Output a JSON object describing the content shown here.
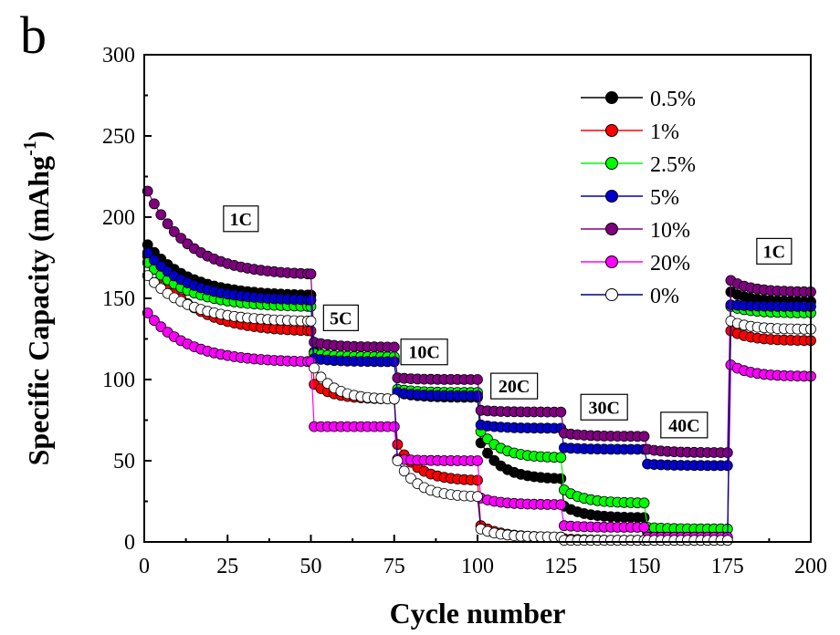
{
  "chart_data": {
    "type": "scatter",
    "panel_label": "b",
    "xlabel": "Cycle number",
    "ylabel": "Specific Capacity (mAhg",
    "ylabel_sup": "-1",
    "ylabel_close": ")",
    "xlim": [
      0,
      200
    ],
    "ylim": [
      0,
      300
    ],
    "xticks": [
      0,
      25,
      50,
      75,
      100,
      125,
      150,
      175,
      200
    ],
    "yticks": [
      0,
      50,
      100,
      150,
      200,
      250,
      300
    ],
    "grid": false,
    "legend_position": "top-right",
    "series": [
      {
        "name": "0.5%",
        "color": "#000000",
        "segments": [
          {
            "x": [
              1,
              50
            ],
            "y": [
              183,
              152
            ]
          },
          {
            "x": [
              51,
              75
            ],
            "y": [
              117,
              112
            ]
          },
          {
            "x": [
              76,
              100
            ],
            "y": [
              92,
              89
            ]
          },
          {
            "x": [
              101,
              125
            ],
            "y": [
              61,
              39
            ]
          },
          {
            "x": [
              126,
              150
            ],
            "y": [
              22,
              15
            ]
          },
          {
            "x": [
              151,
              175
            ],
            "y": [
              6,
              2
            ]
          },
          {
            "x": [
              176,
              200
            ],
            "y": [
              154,
              148
            ]
          }
        ]
      },
      {
        "name": "1%",
        "color": "#ff0000",
        "segments": [
          {
            "x": [
              1,
              50
            ],
            "y": [
              176,
              130
            ]
          },
          {
            "x": [
              51,
              75
            ],
            "y": [
              97,
              88
            ]
          },
          {
            "x": [
              76,
              100
            ],
            "y": [
              60,
              38
            ]
          },
          {
            "x": [
              101,
              125
            ],
            "y": [
              10,
              3
            ]
          },
          {
            "x": [
              126,
              150
            ],
            "y": [
              2,
              1
            ]
          },
          {
            "x": [
              151,
              175
            ],
            "y": [
              1,
              1
            ]
          },
          {
            "x": [
              176,
              200
            ],
            "y": [
              130,
              124
            ]
          }
        ]
      },
      {
        "name": "2.5%",
        "color": "#00ff00",
        "segments": [
          {
            "x": [
              1,
              50
            ],
            "y": [
              172,
              145
            ]
          },
          {
            "x": [
              51,
              75
            ],
            "y": [
              116,
              114
            ]
          },
          {
            "x": [
              76,
              100
            ],
            "y": [
              94,
              92
            ]
          },
          {
            "x": [
              101,
              125
            ],
            "y": [
              68,
              52
            ]
          },
          {
            "x": [
              126,
              150
            ],
            "y": [
              32,
              24
            ]
          },
          {
            "x": [
              151,
              175
            ],
            "y": [
              9,
              8
            ]
          },
          {
            "x": [
              176,
              200
            ],
            "y": [
              145,
              141
            ]
          }
        ]
      },
      {
        "name": "5%",
        "color": "#0000cc",
        "segments": [
          {
            "x": [
              1,
              50
            ],
            "y": [
              178,
              149
            ]
          },
          {
            "x": [
              51,
              75
            ],
            "y": [
              113,
              111
            ]
          },
          {
            "x": [
              76,
              100
            ],
            "y": [
              92,
              90
            ]
          },
          {
            "x": [
              101,
              125
            ],
            "y": [
              72,
              70
            ]
          },
          {
            "x": [
              126,
              150
            ],
            "y": [
              58,
              57
            ]
          },
          {
            "x": [
              151,
              175
            ],
            "y": [
              48,
              47
            ]
          },
          {
            "x": [
              176,
              200
            ],
            "y": [
              146,
              145
            ]
          }
        ]
      },
      {
        "name": "10%",
        "color": "#800080",
        "segments": [
          {
            "x": [
              1,
              50
            ],
            "y": [
              216,
              165
            ]
          },
          {
            "x": [
              51,
              75
            ],
            "y": [
              123,
              120
            ]
          },
          {
            "x": [
              76,
              100
            ],
            "y": [
              101,
              100
            ]
          },
          {
            "x": [
              101,
              125
            ],
            "y": [
              81,
              80
            ]
          },
          {
            "x": [
              126,
              150
            ],
            "y": [
              67,
              65
            ]
          },
          {
            "x": [
              151,
              175
            ],
            "y": [
              57,
              55
            ]
          },
          {
            "x": [
              176,
              200
            ],
            "y": [
              161,
              154
            ]
          }
        ]
      },
      {
        "name": "20%",
        "color": "#ff00ff",
        "segments": [
          {
            "x": [
              1,
              50
            ],
            "y": [
              141,
              111
            ]
          },
          {
            "x": [
              51,
              75
            ],
            "y": [
              71,
              71
            ]
          },
          {
            "x": [
              76,
              100
            ],
            "y": [
              51,
              50
            ]
          },
          {
            "x": [
              101,
              125
            ],
            "y": [
              27,
              23
            ]
          },
          {
            "x": [
              126,
              150
            ],
            "y": [
              10,
              9
            ]
          },
          {
            "x": [
              151,
              175
            ],
            "y": [
              3,
              3
            ]
          },
          {
            "x": [
              176,
              200
            ],
            "y": [
              109,
              102
            ]
          }
        ]
      },
      {
        "name": "0%",
        "color": "#ffffff",
        "stroke": "#000000",
        "segments": [
          {
            "x": [
              1,
              50
            ],
            "y": [
              164,
              136
            ]
          },
          {
            "x": [
              51,
              75
            ],
            "y": [
              107,
              88
            ]
          },
          {
            "x": [
              76,
              100
            ],
            "y": [
              50,
              28
            ]
          },
          {
            "x": [
              101,
              125
            ],
            "y": [
              8,
              3
            ]
          },
          {
            "x": [
              126,
              150
            ],
            "y": [
              1,
              1
            ]
          },
          {
            "x": [
              151,
              175
            ],
            "y": [
              1,
              1
            ]
          },
          {
            "x": [
              176,
              200
            ],
            "y": [
              136,
              131
            ]
          }
        ]
      }
    ],
    "annotations": [
      {
        "text": "1C",
        "x": 29,
        "y": 199
      },
      {
        "text": "5C",
        "x": 59,
        "y": 138
      },
      {
        "text": "10C",
        "x": 84,
        "y": 117
      },
      {
        "text": "20C",
        "x": 111,
        "y": 96
      },
      {
        "text": "30C",
        "x": 138,
        "y": 83
      },
      {
        "text": "40C",
        "x": 162,
        "y": 72
      },
      {
        "text": "1C",
        "x": 189,
        "y": 179
      }
    ]
  }
}
